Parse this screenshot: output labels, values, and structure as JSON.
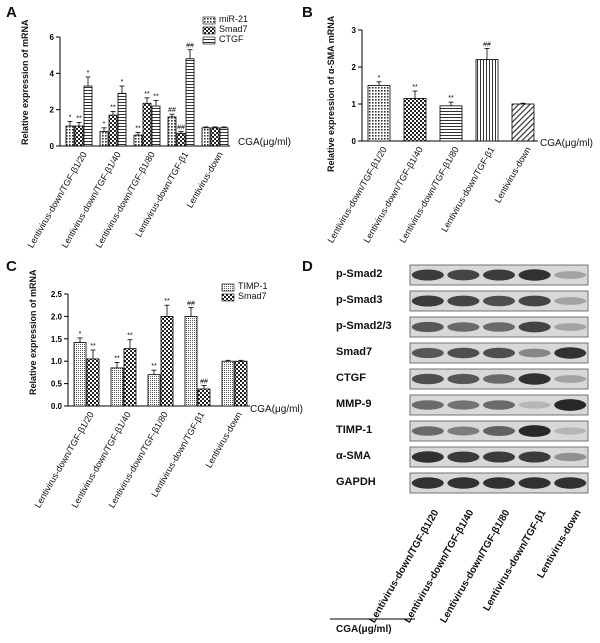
{
  "panels": {
    "A": "A",
    "B": "B",
    "C": "C",
    "D": "D"
  },
  "cga_label": "CGA(μg/ml)",
  "chart_data": [
    {
      "id": "A",
      "type": "bar",
      "ylabel": "Relative expression of mRNA",
      "ylim": [
        0,
        6
      ],
      "yticks": [
        0,
        2,
        4,
        6
      ],
      "categories": [
        "Lentivirus-down/TGF-β1/20",
        "Lentivirus-down/TGF-β1/40",
        "Lentivirus-down/TGF-β1/80",
        "Lentivirus-down/TGF-β1",
        "Lentivirus-down"
      ],
      "series": [
        {
          "name": "miR-21",
          "values": [
            1.1,
            0.8,
            0.6,
            1.6,
            1.0
          ],
          "errors": [
            0.25,
            0.2,
            0.15,
            0.15,
            0.05
          ],
          "marks": [
            "*",
            "*",
            "**",
            "##",
            ""
          ]
        },
        {
          "name": "Smad7",
          "values": [
            1.1,
            1.7,
            2.35,
            0.7,
            1.0
          ],
          "errors": [
            0.2,
            0.2,
            0.3,
            0.1,
            0.05
          ],
          "marks": [
            "**",
            "**",
            "**",
            "##",
            ""
          ]
        },
        {
          "name": "CTGF",
          "values": [
            3.3,
            2.9,
            2.2,
            4.8,
            1.0
          ],
          "errors": [
            0.5,
            0.4,
            0.3,
            0.5,
            0.05
          ],
          "marks": [
            "*",
            "*",
            "**",
            "##",
            ""
          ]
        }
      ],
      "legend": "top-right",
      "legend_labels": [
        "miR-21",
        "Smad7",
        "CTGF"
      ]
    },
    {
      "id": "B",
      "type": "bar",
      "ylabel": "Relative expression of α-SMA mRNA",
      "ylim": [
        0,
        3
      ],
      "yticks": [
        0,
        1,
        2,
        3
      ],
      "categories": [
        "Lentivirus-down/TGF-β1/20",
        "Lentivirus-down/TGF-β1/40",
        "Lentivirus-down/TGF-β1/80",
        "Lentivirus-down/TGF-β1",
        "Lentivirus-down"
      ],
      "series": [
        {
          "name": "",
          "values": [
            1.5,
            1.15,
            0.95,
            2.2,
            1.0
          ],
          "errors": [
            0.1,
            0.2,
            0.1,
            0.3,
            0.02
          ],
          "marks": [
            "*",
            "**",
            "**",
            "##",
            ""
          ]
        }
      ]
    },
    {
      "id": "C",
      "type": "bar",
      "ylabel": "Relative expression of mRNA",
      "ylim": [
        0,
        2.5
      ],
      "yticks": [
        0.0,
        0.5,
        1.0,
        1.5,
        2.0,
        2.5
      ],
      "categories": [
        "Lentivirus-down/TGF-β1/20",
        "Lentivirus-down/TGF-β1/40",
        "Lentivirus-down/TGF-β1/80",
        "Lentivirus-down/TGF-β1",
        "Lentivirus-down"
      ],
      "series": [
        {
          "name": "TIMP-1",
          "values": [
            1.42,
            0.85,
            0.7,
            2.0,
            1.0
          ],
          "errors": [
            0.1,
            0.12,
            0.1,
            0.2,
            0.02
          ],
          "marks": [
            "*",
            "**",
            "**",
            "##",
            ""
          ]
        },
        {
          "name": "Smad7",
          "values": [
            1.05,
            1.28,
            2.0,
            0.38,
            1.0
          ],
          "errors": [
            0.2,
            0.2,
            0.25,
            0.08,
            0.02
          ],
          "marks": [
            "**",
            "**",
            "**",
            "##",
            ""
          ]
        }
      ],
      "legend": "top-right",
      "legend_labels": [
        "TIMP-1",
        "Smad7"
      ]
    }
  ],
  "blot": {
    "bands": [
      "p-Smad2",
      "p-Smad3",
      "p-Smad2/3",
      "Smad7",
      "CTGF",
      "MMP-9",
      "TIMP-1",
      "α-SMA",
      "GAPDH"
    ],
    "intensity": [
      [
        0.85,
        0.8,
        0.85,
        0.9,
        0.3
      ],
      [
        0.85,
        0.8,
        0.75,
        0.8,
        0.3
      ],
      [
        0.7,
        0.6,
        0.6,
        0.8,
        0.3
      ],
      [
        0.7,
        0.75,
        0.75,
        0.45,
        0.9
      ],
      [
        0.75,
        0.7,
        0.6,
        0.9,
        0.3
      ],
      [
        0.6,
        0.55,
        0.6,
        0.2,
        0.95
      ],
      [
        0.6,
        0.5,
        0.65,
        0.95,
        0.2
      ],
      [
        0.9,
        0.85,
        0.85,
        0.85,
        0.4
      ],
      [
        0.9,
        0.9,
        0.9,
        0.9,
        0.9
      ]
    ],
    "lanes": [
      "Lentivirus-down/TGF-β1/20",
      "Lentivirus-down/TGF-β1/40",
      "Lentivirus-down/TGF-β1/80",
      "Lentivirus-down/TGF-β1",
      "Lentivirus-down"
    ]
  }
}
